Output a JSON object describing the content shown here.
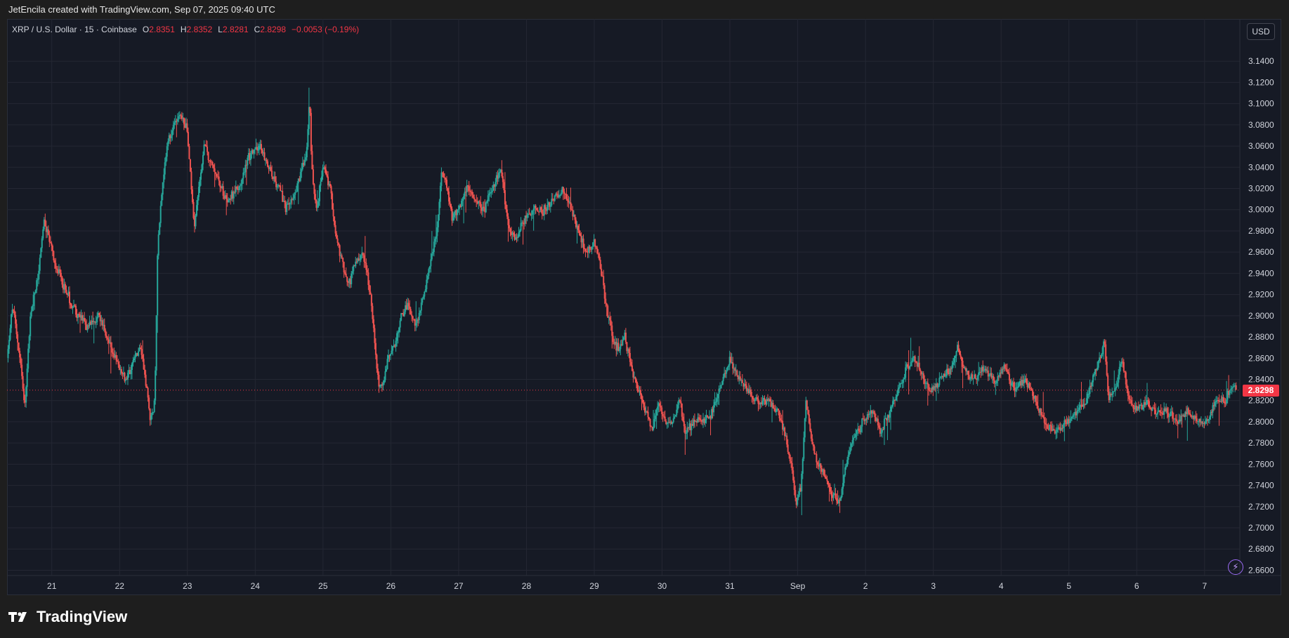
{
  "header": {
    "credit": "JetEncila created with TradingView.com, Sep 07, 2025 09:40 UTC"
  },
  "legend": {
    "symbol": "XRP / U.S. Dollar · 15 · Coinbase",
    "open_label": "O",
    "open": "2.8351",
    "high_label": "H",
    "high": "2.8352",
    "low_label": "L",
    "low": "2.8281",
    "close_label": "C",
    "close": "2.8298",
    "change": "−0.0053 (−0.19%)"
  },
  "currency_button": "USD",
  "last_price_label": "2.8298",
  "footer": {
    "brand": "TradingView"
  },
  "colors": {
    "up": "#26a69a",
    "down": "#ef5350",
    "background": "#161a25",
    "grid": "#242733",
    "last_price": "#f23645"
  },
  "icons": {
    "lightning": "lightning-icon",
    "logo": "tradingview-logo-icon"
  },
  "chart_data": {
    "type": "candlestick",
    "symbol": "XRP / U.S. Dollar",
    "interval": "15",
    "exchange": "Coinbase",
    "y_ticks": [
      "2.6600",
      "2.6800",
      "2.7000",
      "2.7200",
      "2.7400",
      "2.7600",
      "2.7800",
      "2.8000",
      "2.8200",
      "2.8400",
      "2.8600",
      "2.8800",
      "2.9000",
      "2.9200",
      "2.9400",
      "2.9600",
      "2.9800",
      "3.0000",
      "3.0200",
      "3.0400",
      "3.0600",
      "3.0800",
      "3.1000",
      "3.1200",
      "3.1400"
    ],
    "ylim": [
      2.655,
      3.16
    ],
    "x_ticks": [
      "21",
      "22",
      "23",
      "24",
      "25",
      "26",
      "27",
      "28",
      "29",
      "30",
      "31",
      "Sep",
      "2",
      "3",
      "4",
      "5",
      "6",
      "7"
    ],
    "x_tick_days": [
      21,
      22,
      23,
      24,
      25,
      26,
      27,
      28,
      29,
      30,
      31,
      32,
      33,
      34,
      35,
      36,
      37,
      38
    ],
    "xlim_days": [
      20.34,
      38.52
    ],
    "last_price": 2.8298,
    "price_path": [
      [
        20.34,
        2.86
      ],
      [
        20.42,
        2.91
      ],
      [
        20.55,
        2.85
      ],
      [
        20.6,
        2.81
      ],
      [
        20.68,
        2.9
      ],
      [
        20.8,
        2.94
      ],
      [
        20.88,
        2.99
      ],
      [
        21.0,
        2.96
      ],
      [
        21.1,
        2.94
      ],
      [
        21.3,
        2.91
      ],
      [
        21.5,
        2.89
      ],
      [
        21.7,
        2.9
      ],
      [
        21.82,
        2.88
      ],
      [
        21.92,
        2.86
      ],
      [
        22.0,
        2.85
      ],
      [
        22.1,
        2.84
      ],
      [
        22.2,
        2.86
      ],
      [
        22.3,
        2.87
      ],
      [
        22.38,
        2.84
      ],
      [
        22.45,
        2.8
      ],
      [
        22.52,
        2.82
      ],
      [
        22.56,
        2.97
      ],
      [
        22.62,
        3.02
      ],
      [
        22.7,
        3.06
      ],
      [
        22.85,
        3.09
      ],
      [
        22.98,
        3.08
      ],
      [
        23.05,
        3.03
      ],
      [
        23.1,
        2.98
      ],
      [
        23.18,
        3.03
      ],
      [
        23.25,
        3.06
      ],
      [
        23.38,
        3.04
      ],
      [
        23.5,
        3.02
      ],
      [
        23.6,
        3.01
      ],
      [
        23.75,
        3.02
      ],
      [
        23.9,
        3.05
      ],
      [
        24.05,
        3.06
      ],
      [
        24.2,
        3.04
      ],
      [
        24.35,
        3.02
      ],
      [
        24.45,
        3.0
      ],
      [
        24.6,
        3.02
      ],
      [
        24.75,
        3.05
      ],
      [
        24.8,
        3.11
      ],
      [
        24.83,
        3.04
      ],
      [
        24.9,
        3.0
      ],
      [
        25.0,
        3.04
      ],
      [
        25.1,
        3.02
      ],
      [
        25.2,
        2.97
      ],
      [
        25.28,
        2.95
      ],
      [
        25.38,
        2.93
      ],
      [
        25.48,
        2.95
      ],
      [
        25.58,
        2.96
      ],
      [
        25.7,
        2.92
      ],
      [
        25.8,
        2.84
      ],
      [
        25.87,
        2.83
      ],
      [
        25.95,
        2.86
      ],
      [
        26.05,
        2.87
      ],
      [
        26.15,
        2.9
      ],
      [
        26.25,
        2.91
      ],
      [
        26.35,
        2.89
      ],
      [
        26.45,
        2.91
      ],
      [
        26.55,
        2.94
      ],
      [
        26.68,
        2.98
      ],
      [
        26.75,
        3.04
      ],
      [
        26.82,
        3.02
      ],
      [
        26.9,
        2.99
      ],
      [
        27.0,
        3.0
      ],
      [
        27.12,
        3.02
      ],
      [
        27.25,
        3.01
      ],
      [
        27.38,
        3.0
      ],
      [
        27.5,
        3.02
      ],
      [
        27.62,
        3.04
      ],
      [
        27.72,
        2.99
      ],
      [
        27.82,
        2.97
      ],
      [
        27.95,
        2.99
      ],
      [
        28.1,
        3.0
      ],
      [
        28.25,
        3.0
      ],
      [
        28.4,
        3.01
      ],
      [
        28.55,
        3.02
      ],
      [
        28.65,
        3.0
      ],
      [
        28.75,
        2.98
      ],
      [
        28.88,
        2.96
      ],
      [
        29.0,
        2.97
      ],
      [
        29.1,
        2.94
      ],
      [
        29.2,
        2.9
      ],
      [
        29.3,
        2.87
      ],
      [
        29.38,
        2.87
      ],
      [
        29.45,
        2.88
      ],
      [
        29.55,
        2.85
      ],
      [
        29.65,
        2.83
      ],
      [
        29.75,
        2.81
      ],
      [
        29.85,
        2.79
      ],
      [
        29.95,
        2.82
      ],
      [
        30.05,
        2.8
      ],
      [
        30.15,
        2.8
      ],
      [
        30.25,
        2.82
      ],
      [
        30.35,
        2.79
      ],
      [
        30.45,
        2.8
      ],
      [
        30.6,
        2.8
      ],
      [
        30.75,
        2.81
      ],
      [
        30.88,
        2.84
      ],
      [
        31.0,
        2.86
      ],
      [
        31.12,
        2.84
      ],
      [
        31.25,
        2.83
      ],
      [
        31.4,
        2.82
      ],
      [
        31.55,
        2.82
      ],
      [
        31.7,
        2.81
      ],
      [
        31.8,
        2.79
      ],
      [
        31.9,
        2.76
      ],
      [
        31.97,
        2.72
      ],
      [
        32.05,
        2.74
      ],
      [
        32.12,
        2.82
      ],
      [
        32.2,
        2.78
      ],
      [
        32.3,
        2.76
      ],
      [
        32.4,
        2.75
      ],
      [
        32.48,
        2.73
      ],
      [
        32.55,
        2.73
      ],
      [
        32.62,
        2.72
      ],
      [
        32.7,
        2.76
      ],
      [
        32.8,
        2.78
      ],
      [
        32.95,
        2.8
      ],
      [
        33.1,
        2.81
      ],
      [
        33.22,
        2.79
      ],
      [
        33.35,
        2.81
      ],
      [
        33.48,
        2.83
      ],
      [
        33.6,
        2.85
      ],
      [
        33.72,
        2.86
      ],
      [
        33.85,
        2.84
      ],
      [
        34.0,
        2.83
      ],
      [
        34.12,
        2.84
      ],
      [
        34.25,
        2.85
      ],
      [
        34.35,
        2.87
      ],
      [
        34.45,
        2.85
      ],
      [
        34.6,
        2.84
      ],
      [
        34.75,
        2.85
      ],
      [
        34.9,
        2.84
      ],
      [
        35.05,
        2.85
      ],
      [
        35.2,
        2.83
      ],
      [
        35.35,
        2.84
      ],
      [
        35.5,
        2.82
      ],
      [
        35.65,
        2.8
      ],
      [
        35.8,
        2.79
      ],
      [
        35.95,
        2.8
      ],
      [
        36.1,
        2.81
      ],
      [
        36.25,
        2.82
      ],
      [
        36.35,
        2.84
      ],
      [
        36.45,
        2.86
      ],
      [
        36.52,
        2.88
      ],
      [
        36.58,
        2.82
      ],
      [
        36.68,
        2.83
      ],
      [
        36.78,
        2.86
      ],
      [
        36.88,
        2.82
      ],
      [
        37.0,
        2.81
      ],
      [
        37.15,
        2.82
      ],
      [
        37.3,
        2.81
      ],
      [
        37.45,
        2.81
      ],
      [
        37.6,
        2.8
      ],
      [
        37.75,
        2.81
      ],
      [
        37.88,
        2.8
      ],
      [
        38.0,
        2.8
      ],
      [
        38.1,
        2.81
      ],
      [
        38.2,
        2.82
      ],
      [
        38.3,
        2.82
      ],
      [
        38.38,
        2.83
      ],
      [
        38.42,
        2.835
      ],
      [
        38.48,
        2.83
      ]
    ]
  }
}
